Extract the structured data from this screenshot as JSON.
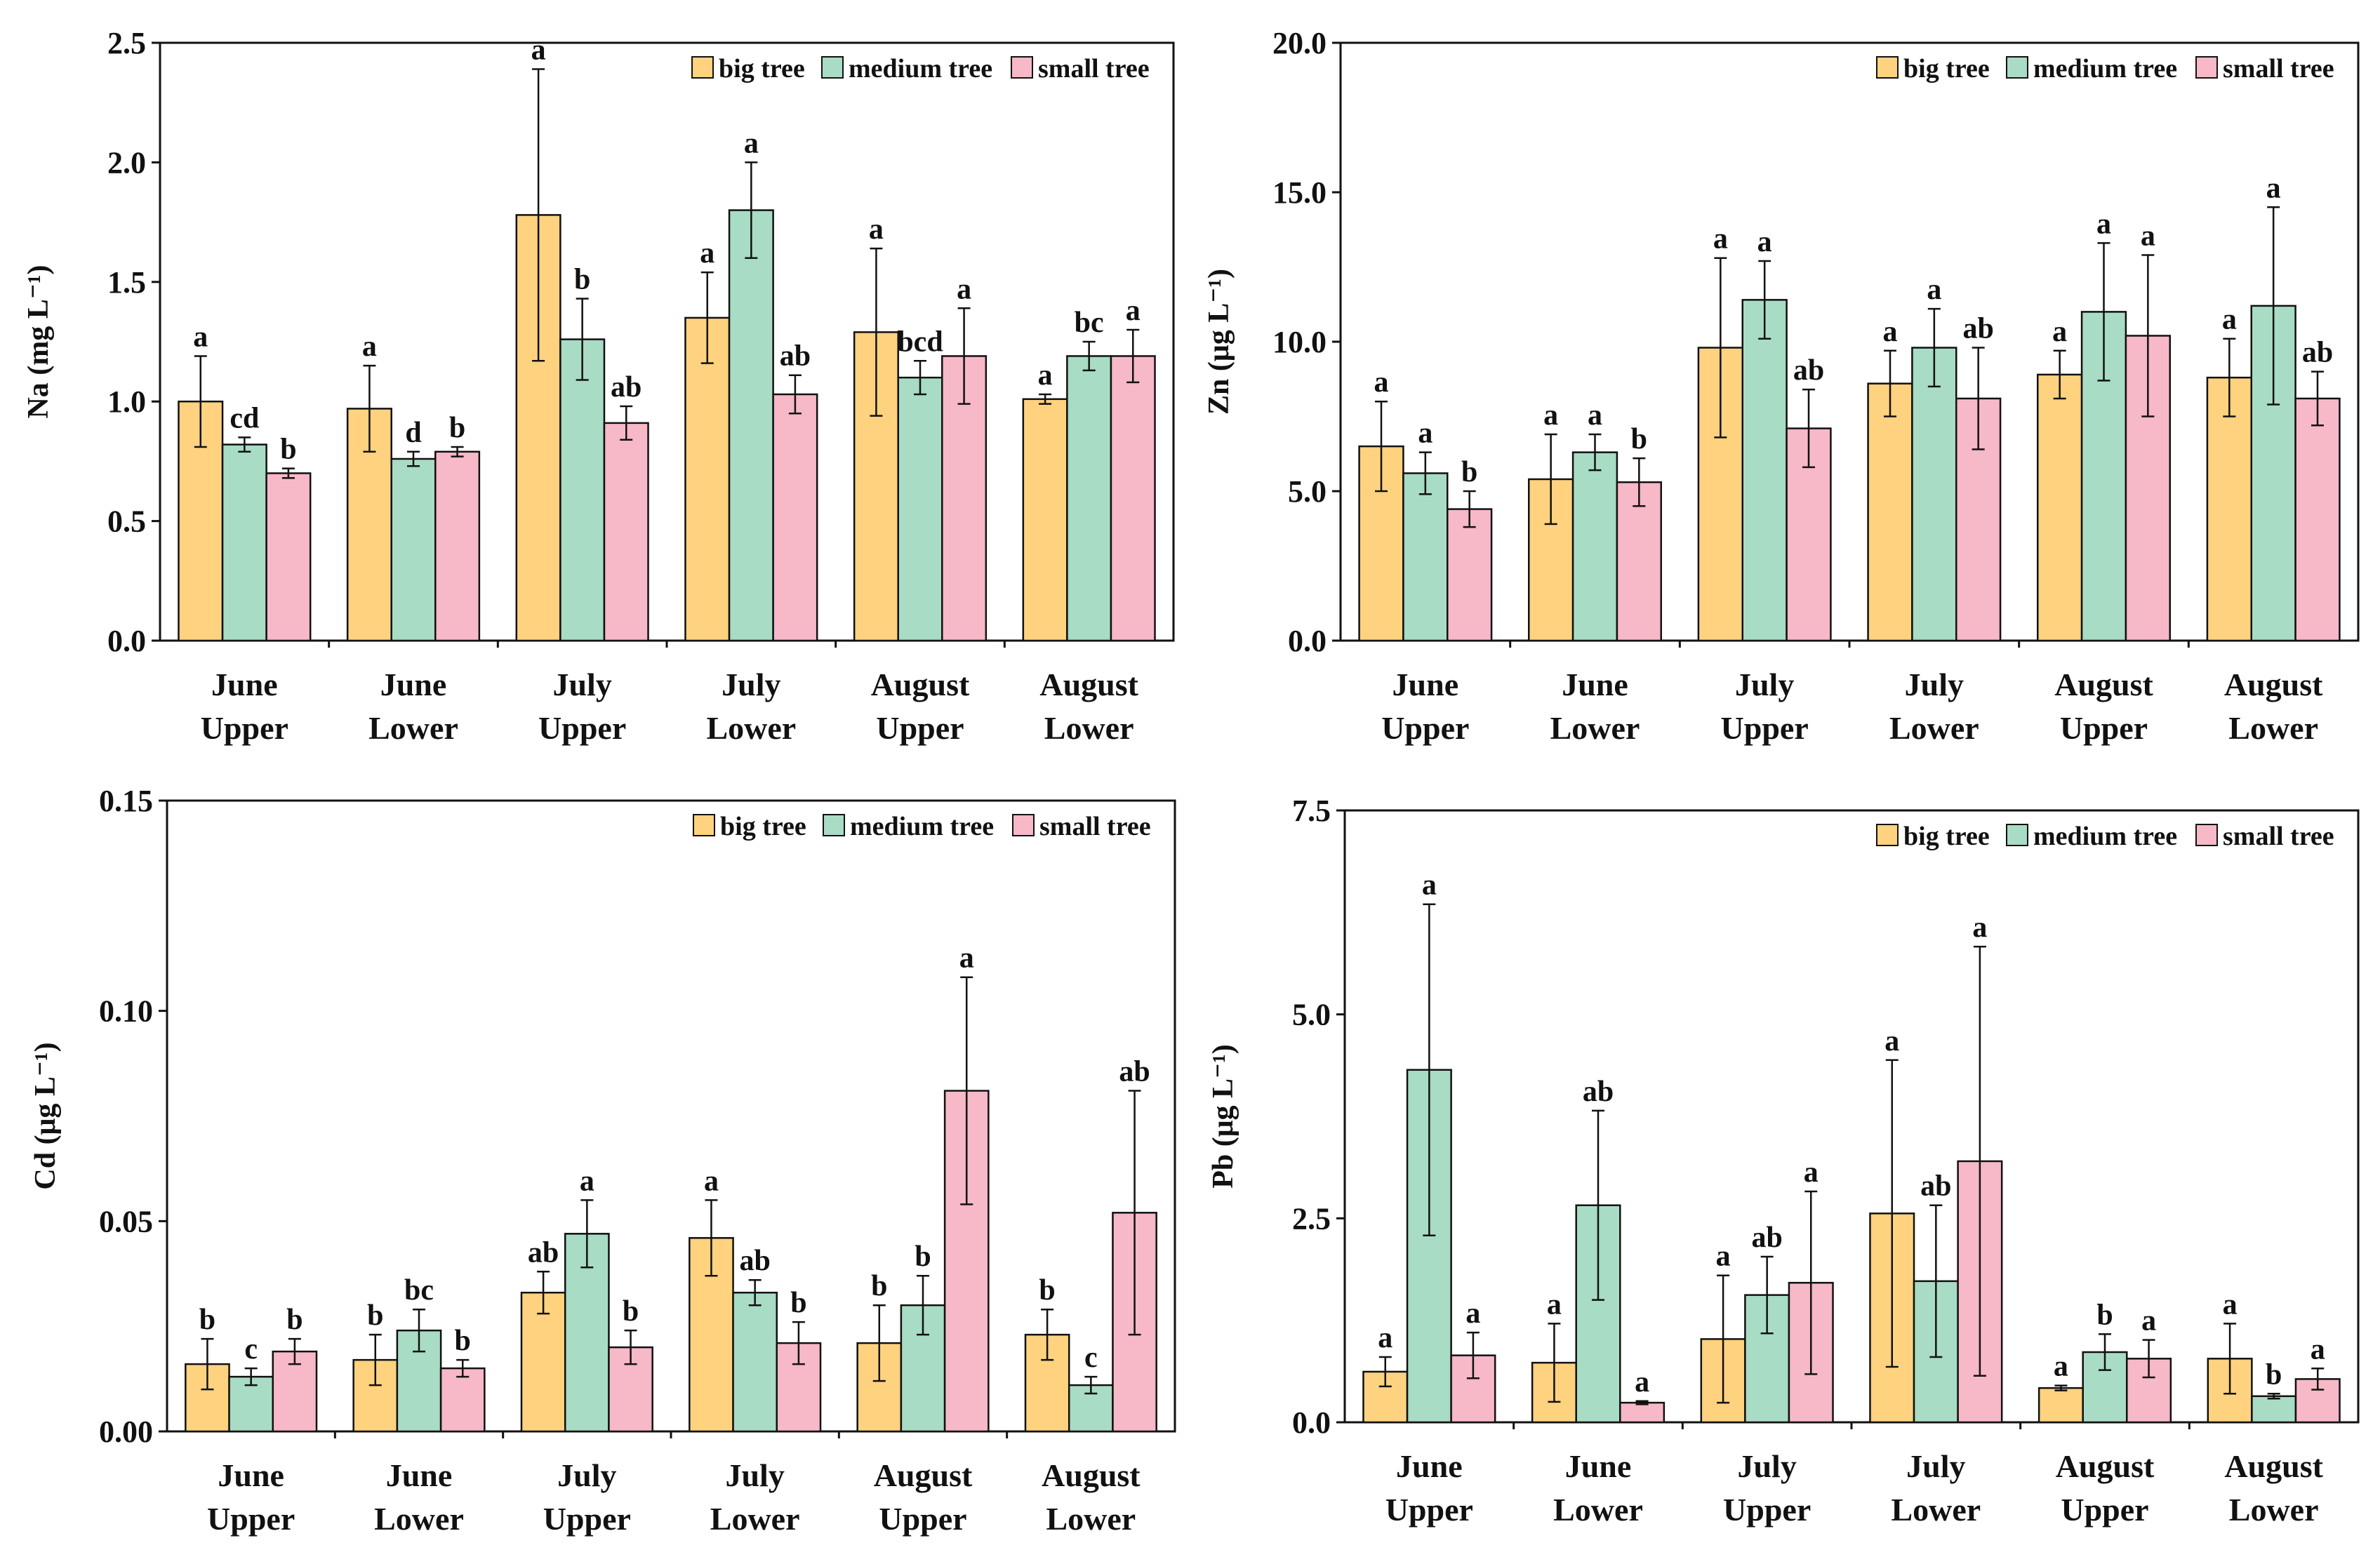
{
  "colors": {
    "big": "#FFD27F",
    "medium": "#A8DCC4",
    "small": "#F7B8C8",
    "stroke": "#111111"
  },
  "legend": [
    "big tree",
    "medium tree",
    "small tree"
  ],
  "chart_data": [
    {
      "type": "bar",
      "title": "",
      "ylabel": "Na  (mg L⁻¹)",
      "ylim": [
        0,
        2.5
      ],
      "yticks": [
        "0.0",
        "0.5",
        "1.0",
        "1.5",
        "2.0",
        "2.5"
      ],
      "yticks_values": [
        0,
        0.5,
        1.0,
        1.5,
        2.0,
        2.5
      ],
      "categories": [
        [
          "June",
          "Upper"
        ],
        [
          "June",
          "Lower"
        ],
        [
          "July",
          "Upper"
        ],
        [
          "July",
          "Lower"
        ],
        [
          "August",
          "Upper"
        ],
        [
          "August",
          "Lower"
        ]
      ],
      "series": [
        {
          "name": "big tree",
          "values": [
            1.0,
            0.97,
            1.78,
            1.35,
            1.29,
            1.01
          ],
          "errors": [
            0.19,
            0.18,
            0.61,
            0.19,
            0.35,
            0.02
          ],
          "letters": [
            "a",
            "a",
            "a",
            "a",
            "a",
            "a"
          ]
        },
        {
          "name": "medium tree",
          "values": [
            0.82,
            0.76,
            1.26,
            1.8,
            1.1,
            1.19
          ],
          "errors": [
            0.03,
            0.03,
            0.17,
            0.2,
            0.07,
            0.06
          ],
          "letters": [
            "cd",
            "d",
            "b",
            "a",
            "bcd",
            "bc"
          ]
        },
        {
          "name": "small tree",
          "values": [
            0.7,
            0.79,
            0.91,
            1.03,
            1.19,
            1.19
          ],
          "errors": [
            0.02,
            0.02,
            0.07,
            0.08,
            0.2,
            0.11
          ],
          "letters": [
            "b",
            "b",
            "ab",
            "ab",
            "a",
            "a"
          ]
        }
      ]
    },
    {
      "type": "bar",
      "title": "",
      "ylabel": "Zn (μg L⁻¹)",
      "ylim": [
        0,
        20
      ],
      "yticks": [
        "0.0",
        "5.0",
        "10.0",
        "15.0",
        "20.0"
      ],
      "yticks_values": [
        0,
        5,
        10,
        15,
        20
      ],
      "categories": [
        [
          "June",
          "Upper"
        ],
        [
          "June",
          "Lower"
        ],
        [
          "July",
          "Upper"
        ],
        [
          "July",
          "Lower"
        ],
        [
          "August",
          "Upper"
        ],
        [
          "August",
          "Lower"
        ]
      ],
      "series": [
        {
          "name": "big tree",
          "values": [
            6.5,
            5.4,
            9.8,
            8.6,
            8.9,
            8.8
          ],
          "errors": [
            1.5,
            1.5,
            3.0,
            1.1,
            0.8,
            1.3
          ],
          "letters": [
            "a",
            "a",
            "a",
            "a",
            "a",
            "a"
          ]
        },
        {
          "name": "medium tree",
          "values": [
            5.6,
            6.3,
            11.4,
            9.8,
            11.0,
            11.2
          ],
          "errors": [
            0.7,
            0.6,
            1.3,
            1.3,
            2.3,
            3.3
          ],
          "letters": [
            "a",
            "a",
            "a",
            "a",
            "a",
            "a"
          ]
        },
        {
          "name": "small tree",
          "values": [
            4.4,
            5.3,
            7.1,
            8.1,
            10.2,
            8.1
          ],
          "errors": [
            0.6,
            0.8,
            1.3,
            1.7,
            2.7,
            0.9
          ],
          "letters": [
            "b",
            "b",
            "ab",
            "ab",
            "a",
            "ab"
          ]
        }
      ]
    },
    {
      "type": "bar",
      "title": "",
      "ylabel": "Cd  (μg L⁻¹)",
      "ylim": [
        0,
        0.15
      ],
      "yticks": [
        "0.00",
        "0.05",
        "0.10",
        "0.15"
      ],
      "yticks_values": [
        0,
        0.05,
        0.1,
        0.15
      ],
      "categories": [
        [
          "June",
          "Upper"
        ],
        [
          "June",
          "Lower"
        ],
        [
          "July",
          "Upper"
        ],
        [
          "July",
          "Lower"
        ],
        [
          "August",
          "Upper"
        ],
        [
          "August",
          "Lower"
        ]
      ],
      "series": [
        {
          "name": "big tree",
          "values": [
            0.016,
            0.017,
            0.033,
            0.046,
            0.021,
            0.023
          ],
          "errors": [
            0.006,
            0.006,
            0.005,
            0.009,
            0.009,
            0.006
          ],
          "letters": [
            "b",
            "b",
            "ab",
            "a",
            "b",
            "b"
          ]
        },
        {
          "name": "medium tree",
          "values": [
            0.013,
            0.024,
            0.047,
            0.033,
            0.03,
            0.011
          ],
          "errors": [
            0.002,
            0.005,
            0.008,
            0.003,
            0.007,
            0.002
          ],
          "letters": [
            "c",
            "bc",
            "a",
            "ab",
            "b",
            "c"
          ]
        },
        {
          "name": "small tree",
          "values": [
            0.019,
            0.015,
            0.02,
            0.021,
            0.081,
            0.052
          ],
          "errors": [
            0.003,
            0.002,
            0.004,
            0.005,
            0.027,
            0.029
          ],
          "letters": [
            "b",
            "b",
            "b",
            "b",
            "a",
            "ab"
          ]
        }
      ]
    },
    {
      "type": "bar",
      "title": "",
      "ylabel": "Pb (μg L⁻¹)",
      "ylim": [
        0,
        7.5
      ],
      "yticks": [
        "0.0",
        "2.5",
        "5.0",
        "7.5"
      ],
      "yticks_values": [
        0,
        2.5,
        5.0,
        7.5
      ],
      "categories": [
        [
          "June",
          "Upper"
        ],
        [
          "June",
          "Lower"
        ],
        [
          "July",
          "Upper"
        ],
        [
          "July",
          "Lower"
        ],
        [
          "August",
          "Upper"
        ],
        [
          "August",
          "Lower"
        ]
      ],
      "series": [
        {
          "name": "big tree",
          "values": [
            0.62,
            0.73,
            1.02,
            2.56,
            0.42,
            0.78
          ],
          "errors": [
            0.18,
            0.48,
            0.78,
            1.88,
            0.03,
            0.43
          ],
          "letters": [
            "a",
            "a",
            "a",
            "a",
            "a",
            "a"
          ]
        },
        {
          "name": "medium tree",
          "values": [
            4.32,
            2.66,
            1.56,
            1.73,
            0.86,
            0.32
          ],
          "errors": [
            2.03,
            1.16,
            0.47,
            0.93,
            0.22,
            0.03
          ],
          "letters": [
            "a",
            "ab",
            "ab",
            "ab",
            "b",
            "b"
          ]
        },
        {
          "name": "small tree",
          "values": [
            0.82,
            0.24,
            1.71,
            3.2,
            0.78,
            0.53
          ],
          "errors": [
            0.28,
            0.02,
            1.12,
            2.63,
            0.23,
            0.13
          ],
          "letters": [
            "a",
            "a",
            "a",
            "a",
            "a",
            "a"
          ]
        }
      ]
    }
  ]
}
